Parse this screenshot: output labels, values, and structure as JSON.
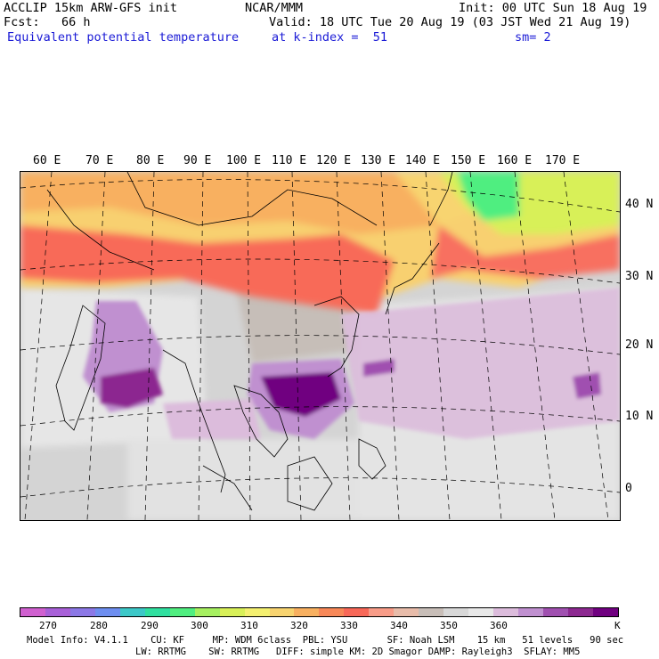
{
  "header": {
    "line1_left": "ACCLIP 15km ARW-GFS init",
    "line1_center": "NCAR/MMM",
    "line1_right": "Init: 00 UTC Sun 18 Aug 19",
    "line2_left": "Fcst:   66 h",
    "line2_right": "Valid: 18 UTC Tue 20 Aug 19 (03 JST Wed 21 Aug 19)",
    "line3_left": "Equivalent potential temperature",
    "line3_center": "at k-index =  51",
    "line3_right": "sm= 2"
  },
  "map": {
    "lon_labels": [
      "60 E",
      "70 E",
      "80 E",
      "90 E",
      "100 E",
      "110 E",
      "120 E",
      "130 E",
      "140 E",
      "150 E",
      "160 E",
      "170 E"
    ],
    "lat_labels": [
      "40 N",
      "30 N",
      "20 N",
      "10 N",
      "0"
    ]
  },
  "colorbar": {
    "colors": [
      "#d060d0",
      "#a860d8",
      "#8c78e6",
      "#6e8ef0",
      "#3cc8c8",
      "#30e0a0",
      "#50ee80",
      "#a6f060",
      "#d8f058",
      "#f4f070",
      "#f8d470",
      "#f8b060",
      "#f88858",
      "#f86858",
      "#f89c88",
      "#e8bcaa",
      "#c8beb8",
      "#d8d8d8",
      "#e8e8e8",
      "#dcbcdc",
      "#c090d0",
      "#a050b0",
      "#8c2890",
      "#700080"
    ],
    "labels": [
      "270",
      "280",
      "290",
      "300",
      "310",
      "320",
      "330",
      "340",
      "350",
      "360"
    ],
    "unit": "K"
  },
  "model_info": {
    "line1": "Model Info: V4.1.1    CU: KF     MP: WDM 6class  PBL: YSU       SF: Noah LSM    15 km   51 levels   90 sec",
    "line2": "LW: RRTMG    SW: RRTMG   DIFF: simple KM: 2D Smagor DAMP: Rayleigh3  SFLAY: MM5"
  }
}
